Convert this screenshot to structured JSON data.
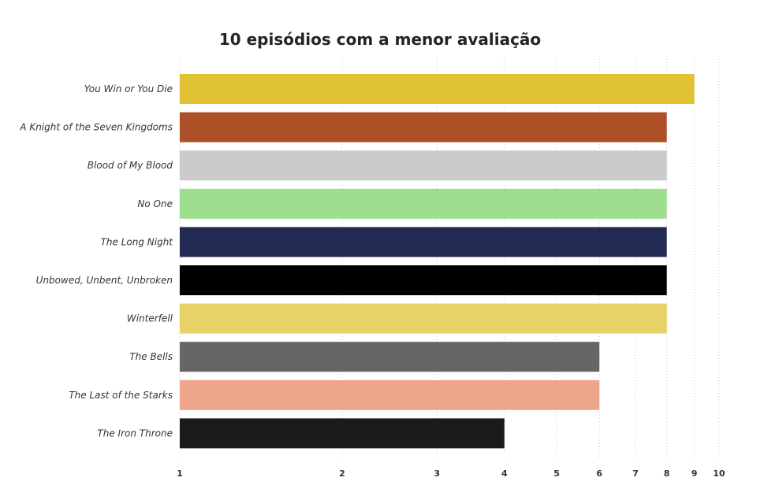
{
  "chart_data": {
    "type": "bar",
    "orientation": "horizontal",
    "title": "10 episódios com a menor avaliação",
    "x_scale": "log",
    "xlim": [
      1,
      10
    ],
    "x_ticks": [
      "1",
      "2",
      "3",
      "4",
      "5",
      "6",
      "7",
      "8",
      "9",
      "10"
    ],
    "grid": true,
    "categories": [
      "You Win or You Die",
      "A Knight of the Seven Kingdoms",
      "Blood of My Blood",
      "No One",
      "The Long Night",
      "Unbowed, Unbent, Unbroken",
      "Winterfell",
      "The Bells",
      "The Last of the Starks",
      "The Iron Throne"
    ],
    "values": [
      9,
      8,
      8,
      8,
      8,
      8,
      8,
      6,
      6,
      4
    ],
    "colors": [
      "#e1c233",
      "#ae5027",
      "#cbcbcb",
      "#a0de8f",
      "#232b55",
      "#000000",
      "#e8d166",
      "#666666",
      "#efa58b",
      "#1b1b1b"
    ]
  }
}
